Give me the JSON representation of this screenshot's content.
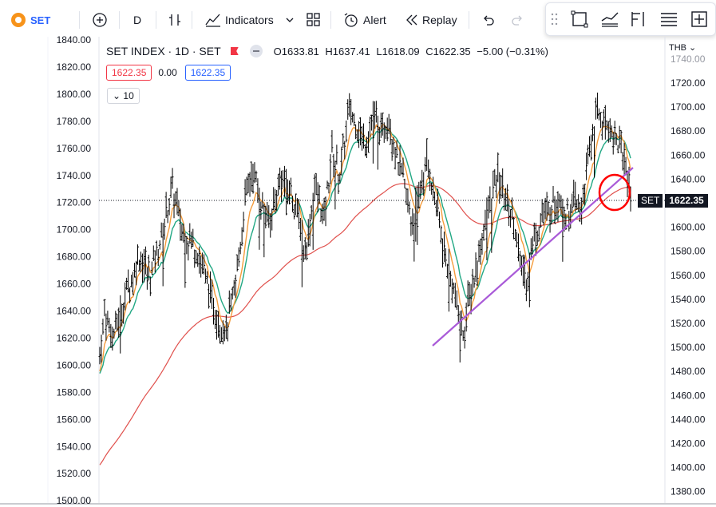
{
  "toolbar": {
    "symbol": "SET",
    "interval": "D",
    "indicators_label": "Indicators",
    "alert_label": "Alert",
    "replay_label": "Replay"
  },
  "legend": {
    "title": "SET INDEX · 1D · SET",
    "open": "O1633.81",
    "high": "H1637.41",
    "low": "L1618.09",
    "close": "C1622.35",
    "change": "−5.00 (−0.31%)",
    "ma_red_value": "1622.35",
    "ma_mid_value": "0.00",
    "ma_blue_value": "1622.35",
    "length_value": "10"
  },
  "price_axis": {
    "unit": "THB",
    "labels": [
      "1720.00",
      "1700.00",
      "1680.00",
      "1660.00",
      "1640.00",
      "1620.00",
      "1600.00",
      "1580.00",
      "1560.00",
      "1540.00",
      "1520.00",
      "1500.00",
      "1480.00",
      "1460.00",
      "1440.00",
      "1420.00",
      "1400.00",
      "1380.00"
    ],
    "top_partial": "1740.00",
    "last_symbol": "SET",
    "last_price": "1622.35"
  },
  "left_axis": {
    "labels": [
      "1840.00",
      "1820.00",
      "1800.00",
      "1780.00",
      "1760.00",
      "1740.00",
      "1720.00",
      "1700.00",
      "1680.00",
      "1660.00",
      "1640.00",
      "1620.00",
      "1600.00",
      "1580.00",
      "1560.00",
      "1540.00",
      "1520.00",
      "1500.00"
    ]
  },
  "colors": {
    "accent": "#2962ff",
    "red": "#f23645",
    "ema_orange": "#f59c3c",
    "ema_teal": "#22a884",
    "ma_long_red": "#e0504c",
    "trendline": "#a95ad8",
    "circle": "#ff0000",
    "bar": "#000000"
  },
  "chart_data": {
    "type": "line",
    "title": "SET INDEX · 1D · SET",
    "price_anchors_left_axis": [
      [
        0,
        1605
      ],
      [
        3,
        1640
      ],
      [
        8,
        1620
      ],
      [
        16,
        1650
      ],
      [
        25,
        1680
      ],
      [
        32,
        1665
      ],
      [
        40,
        1700
      ],
      [
        46,
        1730
      ],
      [
        52,
        1700
      ],
      [
        58,
        1690
      ],
      [
        63,
        1680
      ],
      [
        68,
        1660
      ],
      [
        74,
        1635
      ],
      [
        80,
        1625
      ],
      [
        86,
        1660
      ],
      [
        92,
        1720
      ],
      [
        97,
        1745
      ],
      [
        102,
        1720
      ],
      [
        108,
        1705
      ],
      [
        114,
        1740
      ],
      [
        120,
        1730
      ],
      [
        126,
        1710
      ],
      [
        130,
        1680
      ],
      [
        136,
        1730
      ],
      [
        142,
        1710
      ],
      [
        147,
        1755
      ],
      [
        152,
        1740
      ],
      [
        158,
        1790
      ],
      [
        163,
        1775
      ],
      [
        168,
        1765
      ],
      [
        173,
        1785
      ],
      [
        178,
        1770
      ],
      [
        183,
        1780
      ],
      [
        188,
        1755
      ],
      [
        193,
        1730
      ],
      [
        198,
        1705
      ],
      [
        202,
        1725
      ],
      [
        207,
        1750
      ],
      [
        212,
        1725
      ],
      [
        217,
        1690
      ],
      [
        222,
        1665
      ],
      [
        226,
        1645
      ],
      [
        230,
        1625
      ],
      [
        234,
        1650
      ],
      [
        238,
        1670
      ],
      [
        243,
        1700
      ],
      [
        248,
        1725
      ],
      [
        252,
        1740
      ],
      [
        257,
        1720
      ],
      [
        262,
        1710
      ],
      [
        266,
        1675
      ],
      [
        270,
        1665
      ],
      [
        275,
        1695
      ],
      [
        280,
        1710
      ],
      [
        285,
        1715
      ],
      [
        290,
        1725
      ],
      [
        295,
        1712
      ],
      [
        300,
        1720
      ],
      [
        305,
        1715
      ],
      [
        310,
        1760
      ],
      [
        315,
        1785
      ],
      [
        320,
        1780
      ],
      [
        325,
        1770
      ],
      [
        330,
        1760
      ],
      [
        336,
        1728
      ]
    ],
    "series": []
  }
}
